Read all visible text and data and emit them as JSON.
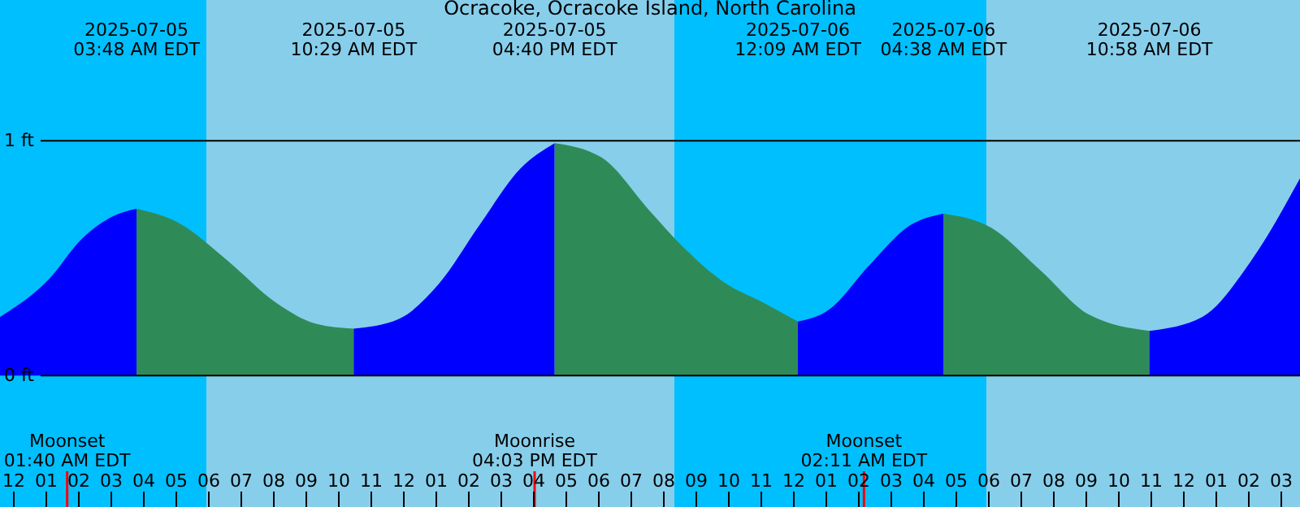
{
  "chart_data": {
    "type": "area",
    "title": "Ocracoke, Ocracoke Island, North Carolina",
    "xlim": [
      "2025-07-04T23:36",
      "2025-07-06T15:36"
    ],
    "xticks": [
      {
        "value": "2025-07-05T00:00",
        "label": "12"
      },
      {
        "value": "2025-07-05T01:00",
        "label": "01"
      },
      {
        "value": "2025-07-05T02:00",
        "label": "02"
      },
      {
        "value": "2025-07-05T03:00",
        "label": "03"
      },
      {
        "value": "2025-07-05T04:00",
        "label": "04"
      },
      {
        "value": "2025-07-05T05:00",
        "label": "05"
      },
      {
        "value": "2025-07-05T06:00",
        "label": "06"
      },
      {
        "value": "2025-07-05T07:00",
        "label": "07"
      },
      {
        "value": "2025-07-05T08:00",
        "label": "08"
      },
      {
        "value": "2025-07-05T09:00",
        "label": "09"
      },
      {
        "value": "2025-07-05T10:00",
        "label": "10"
      },
      {
        "value": "2025-07-05T11:00",
        "label": "11"
      },
      {
        "value": "2025-07-05T12:00",
        "label": "12"
      },
      {
        "value": "2025-07-05T13:00",
        "label": "01"
      },
      {
        "value": "2025-07-05T14:00",
        "label": "02"
      },
      {
        "value": "2025-07-05T15:00",
        "label": "03"
      },
      {
        "value": "2025-07-05T16:00",
        "label": "04"
      },
      {
        "value": "2025-07-05T17:00",
        "label": "05"
      },
      {
        "value": "2025-07-05T18:00",
        "label": "06"
      },
      {
        "value": "2025-07-05T19:00",
        "label": "07"
      },
      {
        "value": "2025-07-05T20:00",
        "label": "08"
      },
      {
        "value": "2025-07-05T21:00",
        "label": "09"
      },
      {
        "value": "2025-07-05T22:00",
        "label": "10"
      },
      {
        "value": "2025-07-05T23:00",
        "label": "11"
      },
      {
        "value": "2025-07-06T00:00",
        "label": "12"
      },
      {
        "value": "2025-07-06T01:00",
        "label": "01"
      },
      {
        "value": "2025-07-06T02:00",
        "label": "02"
      },
      {
        "value": "2025-07-06T03:00",
        "label": "03"
      },
      {
        "value": "2025-07-06T04:00",
        "label": "04"
      },
      {
        "value": "2025-07-06T05:00",
        "label": "05"
      },
      {
        "value": "2025-07-06T06:00",
        "label": "06"
      },
      {
        "value": "2025-07-06T07:00",
        "label": "07"
      },
      {
        "value": "2025-07-06T08:00",
        "label": "08"
      },
      {
        "value": "2025-07-06T09:00",
        "label": "09"
      },
      {
        "value": "2025-07-06T10:00",
        "label": "10"
      },
      {
        "value": "2025-07-06T11:00",
        "label": "11"
      },
      {
        "value": "2025-07-06T12:00",
        "label": "12"
      },
      {
        "value": "2025-07-06T13:00",
        "label": "01"
      },
      {
        "value": "2025-07-06T14:00",
        "label": "02"
      },
      {
        "value": "2025-07-06T15:00",
        "label": "03"
      }
    ],
    "ylim": [
      -0.56,
      1.6
    ],
    "yticks": [
      {
        "value": 0,
        "label": "0 ft"
      },
      {
        "value": 1,
        "label": "1 ft"
      }
    ],
    "grid": "y",
    "series": [
      {
        "color": "#0000ff",
        "x": [
          "2025-07-04T23:36",
          "2025-07-05T01:06",
          "2025-07-05T02:06",
          "2025-07-05T03:06",
          "2025-07-05T03:48"
        ],
        "values": [
          0.25,
          0.41,
          0.58,
          0.68,
          0.71
        ]
      },
      {
        "color": "#2e8b57",
        "x": [
          "2025-07-05T03:48",
          "2025-07-05T05:06",
          "2025-07-05T06:36",
          "2025-07-05T08:06",
          "2025-07-05T09:21",
          "2025-07-05T10:29"
        ],
        "values": [
          0.71,
          0.65,
          0.49,
          0.31,
          0.22,
          0.2
        ]
      },
      {
        "color": "#0000ff",
        "x": [
          "2025-07-05T10:29",
          "2025-07-05T11:51",
          "2025-07-05T13:06",
          "2025-07-05T14:21",
          "2025-07-05T15:36",
          "2025-07-05T16:40"
        ],
        "values": [
          0.2,
          0.24,
          0.39,
          0.64,
          0.88,
          0.99
        ]
      },
      {
        "color": "#2e8b57",
        "x": [
          "2025-07-05T16:40",
          "2025-07-05T18:06",
          "2025-07-05T19:36",
          "2025-07-05T20:36",
          "2025-07-05T21:51",
          "2025-07-05T23:06",
          "2025-07-06T00:09"
        ],
        "values": [
          0.99,
          0.93,
          0.7,
          0.55,
          0.4,
          0.31,
          0.23
        ]
      },
      {
        "color": "#0000ff",
        "x": [
          "2025-07-06T00:09",
          "2025-07-06T01:06",
          "2025-07-06T02:21",
          "2025-07-06T03:36",
          "2025-07-06T04:38"
        ],
        "values": [
          0.23,
          0.28,
          0.47,
          0.64,
          0.69
        ]
      },
      {
        "color": "#2e8b57",
        "x": [
          "2025-07-06T04:38",
          "2025-07-06T06:06",
          "2025-07-06T07:36",
          "2025-07-06T09:06",
          "2025-07-06T10:58"
        ],
        "values": [
          0.69,
          0.63,
          0.45,
          0.26,
          0.19
        ]
      },
      {
        "color": "#0000ff",
        "x": [
          "2025-07-06T10:58",
          "2025-07-06T12:36",
          "2025-07-06T14:06",
          "2025-07-06T15:36"
        ],
        "values": [
          0.19,
          0.25,
          0.49,
          0.84
        ]
      }
    ],
    "bands": [
      {
        "axis": "x",
        "from": "2025-07-04T23:36",
        "to": "2025-07-05T05:57",
        "color": "#00bfff"
      },
      {
        "axis": "x",
        "from": "2025-07-05T05:57",
        "to": "2025-07-05T20:21",
        "color": "#87ceeb"
      },
      {
        "axis": "x",
        "from": "2025-07-05T20:21",
        "to": "2025-07-06T05:57",
        "color": "#00bfff"
      },
      {
        "axis": "x",
        "from": "2025-07-06T05:57",
        "to": "2025-07-06T15:36",
        "color": "#87ceeb"
      }
    ],
    "annotations": [
      "2025-07-05\n03:48 AM EDT",
      "2025-07-05\n10:29 AM EDT",
      "2025-07-05\n04:40 PM EDT",
      "2025-07-06\n12:09 AM EDT",
      "2025-07-06\n04:38 AM EDT",
      "2025-07-06\n10:58 AM EDT"
    ],
    "ref_lines": [
      {
        "axis": "x",
        "value": "2025-07-05T01:40",
        "label": "Moonset\n01:40 AM EDT",
        "color": "#ff0000"
      },
      {
        "axis": "x",
        "value": "2025-07-05T16:03",
        "label": "Moonrise\n04:03 PM EDT",
        "color": "#ff0000"
      },
      {
        "axis": "x",
        "value": "2025-07-06T02:11",
        "label": "Moonset\n02:11 AM EDT",
        "color": "#ff0000"
      }
    ]
  }
}
